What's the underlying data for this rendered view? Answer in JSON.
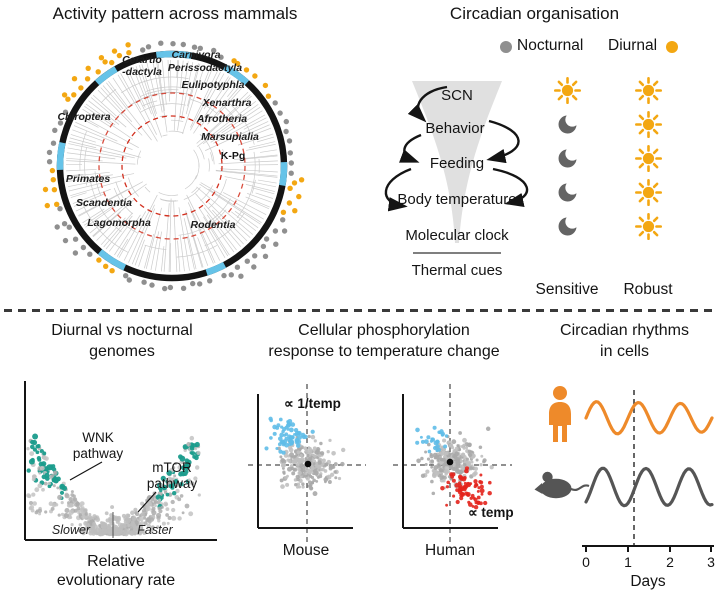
{
  "colors": {
    "nocturnal_gray": "#8f8f8f",
    "diurnal_orange": "#f3a712",
    "moon_gray": "#646464",
    "ring_black": "#141414",
    "clade_blue": "#66c3e8",
    "kpg_red": "#d2301f",
    "funnel_gray": "#e0e0e0",
    "teal": "#1a9c8c",
    "scatter_gray": "#c3c3c3",
    "blue_points": "#5fbde8",
    "red_points": "#e3231c",
    "wave_orange": "#ee8a2a",
    "wave_gray": "#555555"
  },
  "phylogeny": {
    "title": "Activity pattern across mammals",
    "clades": [
      "Cetartio\n-dactyla",
      "Carnivora",
      "Perissodactyla",
      "Eulipotyphla",
      "Xenarthra",
      "Afrotheria",
      "Marsupialia",
      "Chiroptera",
      "Primates",
      "Scandentia",
      "Lagomorpha",
      "Rodentia"
    ],
    "kpg_label": "K-Pg"
  },
  "circadian": {
    "title": "Circadian organisation",
    "legend": [
      {
        "label": "Nocturnal"
      },
      {
        "label": "Diurnal"
      }
    ],
    "flow": {
      "scn": "SCN",
      "behavior": "Behavior",
      "feeding": "Feeding",
      "body_temperature": "Body temperature",
      "molecular_clock": "Molecular clock",
      "thermal_cues": "Thermal cues"
    },
    "columns": {
      "left": {
        "label": "Sensitive",
        "icons": [
          "sun",
          "moon",
          "moon",
          "moon",
          "moon"
        ]
      },
      "right": {
        "label": "Robust",
        "icons": [
          "sun",
          "sun",
          "sun",
          "sun",
          "sun"
        ]
      }
    }
  },
  "genomes": {
    "title_line1": "Diurnal vs nocturnal",
    "title_line2": "genomes",
    "wnk_line1": "WNK",
    "wnk_line2": "pathway",
    "mtor_line1": "mTOR",
    "mtor_line2": "pathway",
    "slower": "Slower",
    "faster": "Faster",
    "xlabel_line1": "Relative",
    "xlabel_line2": "evolutionary rate"
  },
  "phospho": {
    "title_line1": "Cellular phosphorylation",
    "title_line2": "response to temperature change",
    "inverse_temp_label": "∝ 1/temp",
    "temp_label": "∝ temp",
    "mouse_label": "Mouse",
    "human_label": "Human"
  },
  "rhythms": {
    "title_line1": "Circadian rhythms",
    "title_line2": "in cells",
    "ticks": [
      "0",
      "1",
      "2",
      "3"
    ],
    "xlabel": "Days"
  },
  "chart_data": [
    {
      "type": "scatter",
      "title": "Diurnal vs nocturnal genomes",
      "xlabel": "Relative evolutionary rate",
      "x_annotations": [
        "Slower",
        "Faster"
      ],
      "annotations": [
        "WNK pathway",
        "mTOR pathway"
      ],
      "series": [
        {
          "name": "background genes",
          "color": "#c3c3c3",
          "shape": "V-shaped cloud"
        },
        {
          "name": "fast-evolving pathway genes (WNK, mTOR)",
          "color": "#1a9c8c",
          "shape": "outer arms of V"
        }
      ]
    },
    {
      "type": "scatter",
      "title": "Cellular phosphorylation response to temperature change",
      "plots": [
        {
          "name": "Mouse",
          "clusters": [
            {
              "label": "∝ 1/temp",
              "color": "#5fbde8",
              "position": "upper-left"
            },
            {
              "label": "bulk",
              "color": "gray",
              "position": "center"
            }
          ]
        },
        {
          "name": "Human",
          "clusters": [
            {
              "label": "∝ 1/temp",
              "color": "#5fbde8",
              "position": "upper-left"
            },
            {
              "label": "bulk",
              "color": "gray",
              "position": "center"
            },
            {
              "label": "∝ temp",
              "color": "#e3231c",
              "position": "lower-right"
            }
          ]
        }
      ]
    },
    {
      "type": "line",
      "title": "Circadian rhythms in cells",
      "xlabel": "Days",
      "x_ticks": [
        0,
        1,
        2,
        3
      ],
      "xlim": [
        0,
        3
      ],
      "series": [
        {
          "name": "human cells",
          "color": "#ee8a2a",
          "description": "oscillation with ~1 day period"
        },
        {
          "name": "mouse cells",
          "color": "#555555",
          "description": "oscillation with ~1 day period"
        }
      ],
      "annotations": [
        "vertical dashed line near day 1.2"
      ]
    }
  ]
}
